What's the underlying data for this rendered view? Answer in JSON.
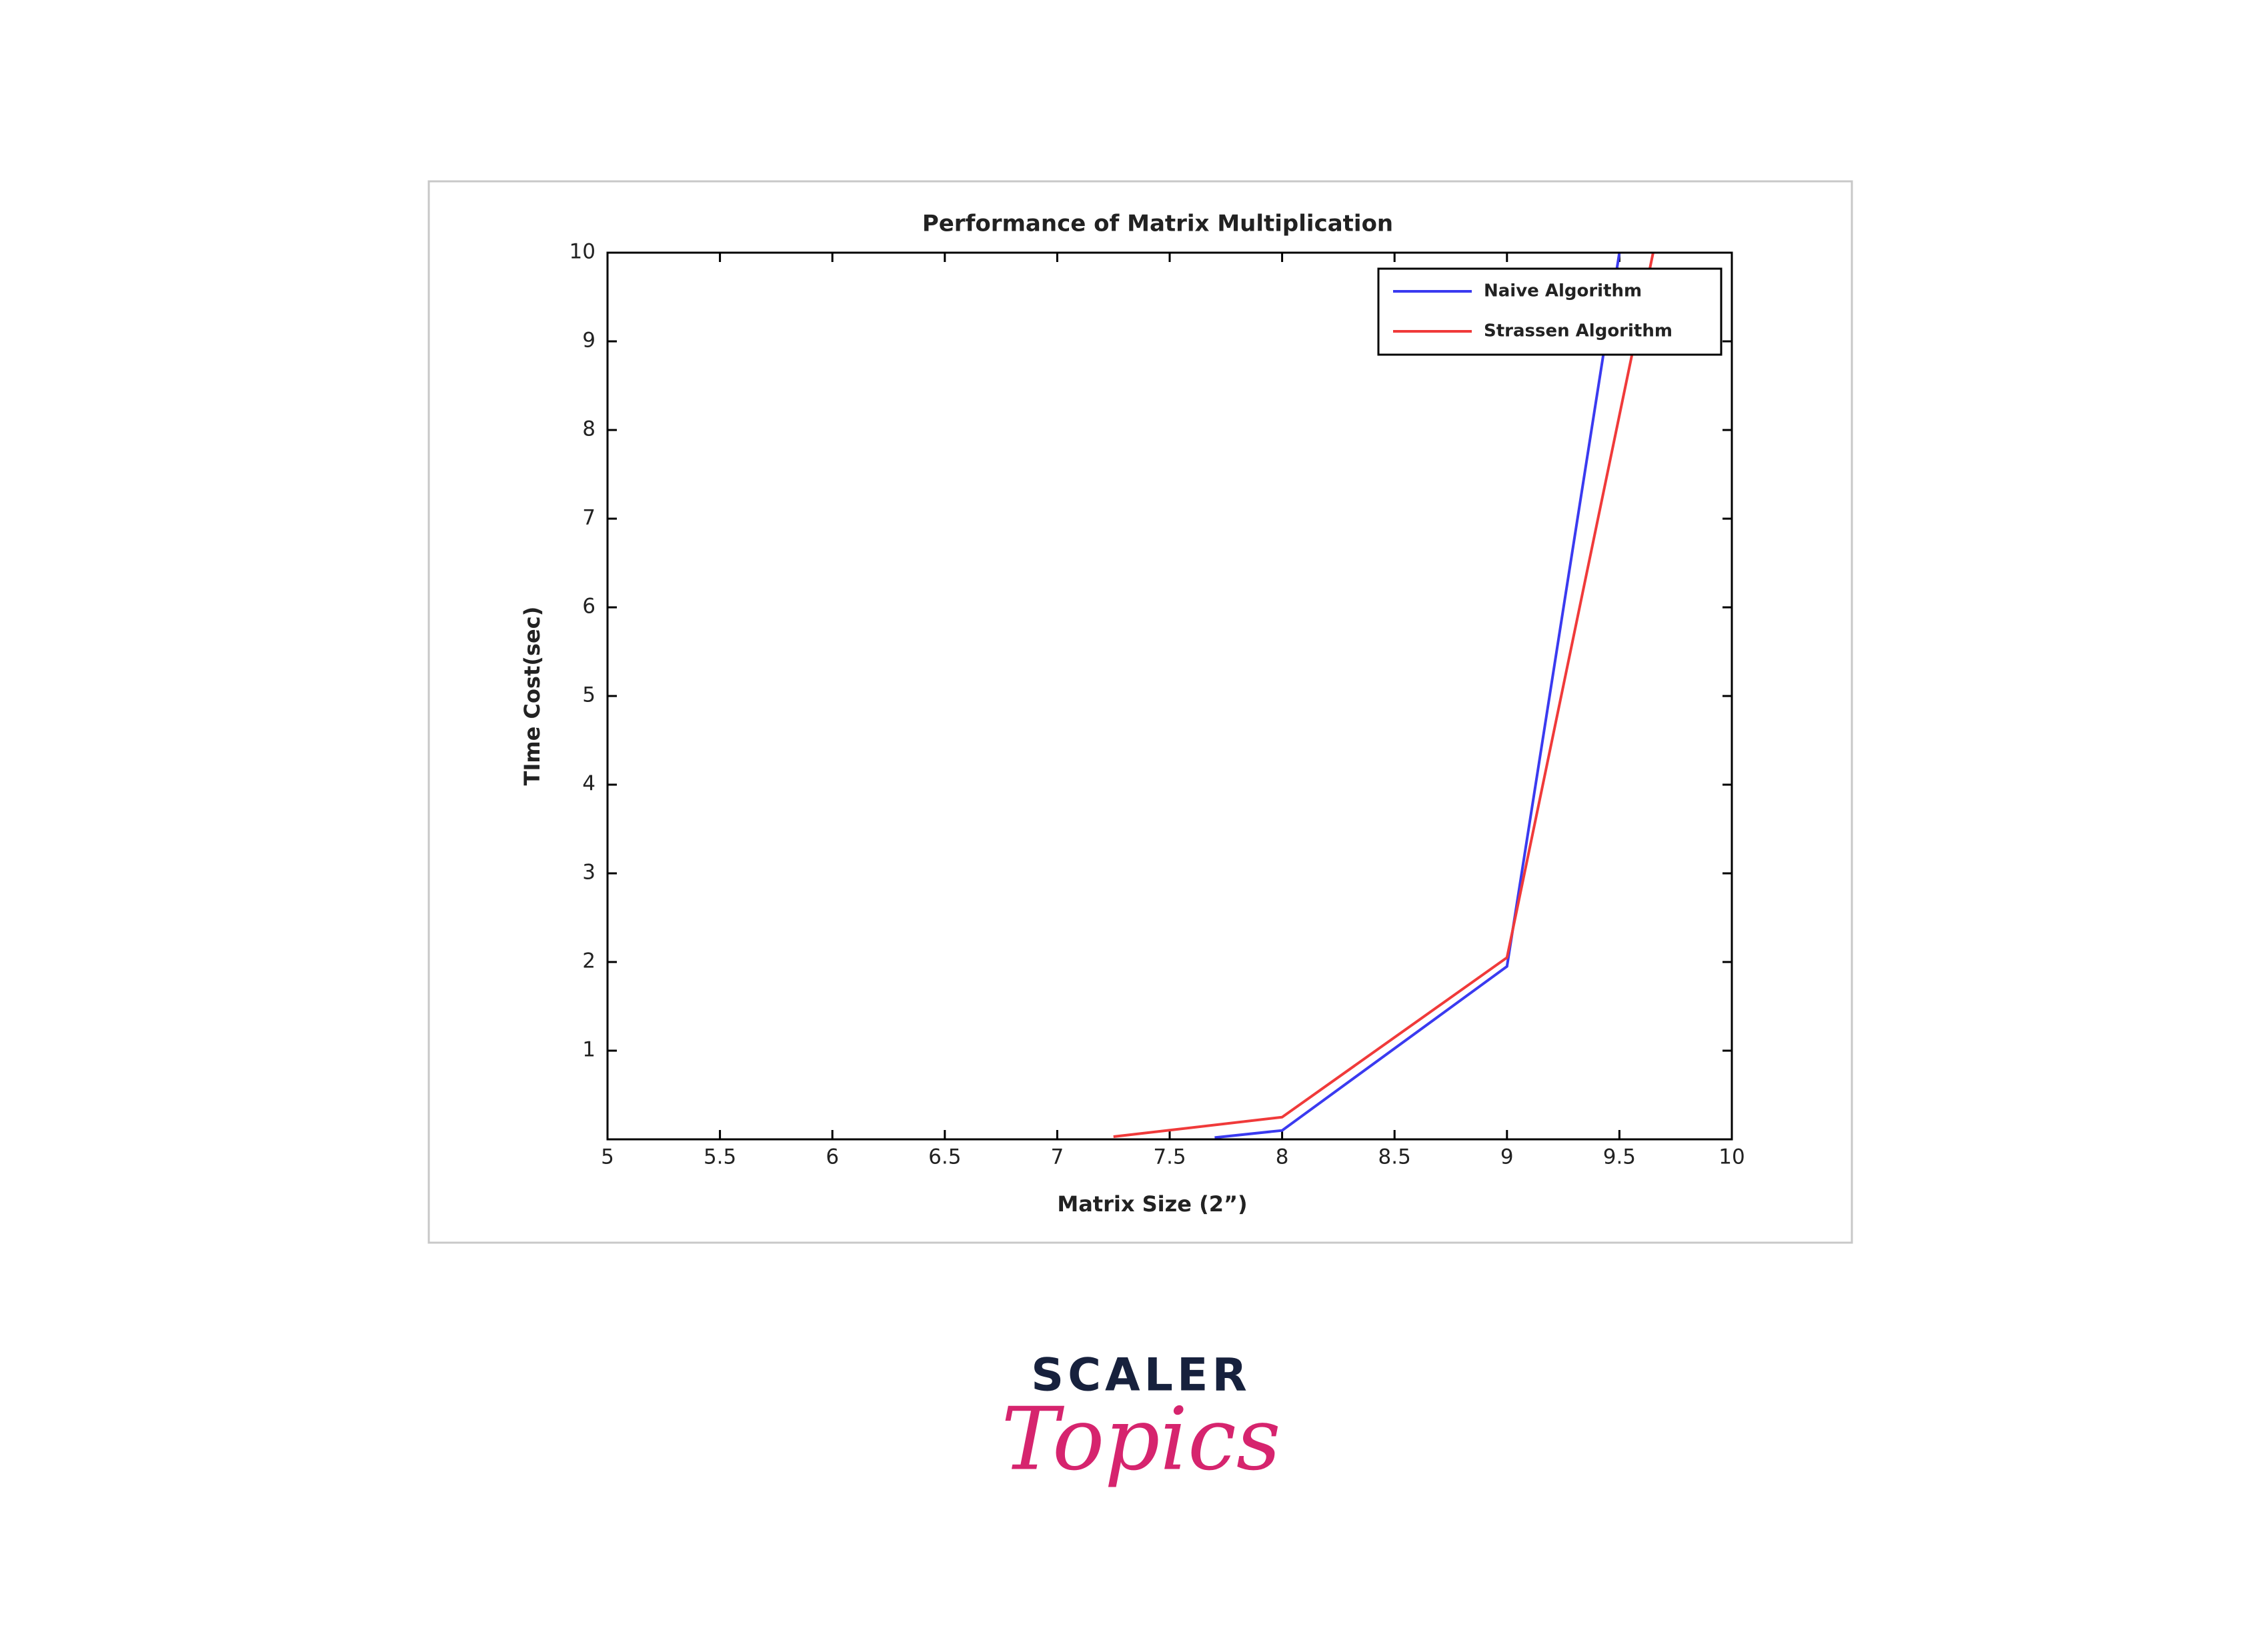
{
  "chart_data": {
    "type": "line",
    "title": "Performance of Matrix Multiplication",
    "x_label": "Matrix Size (2”)",
    "y_label": "TIme Cost(sec)",
    "series": [
      {
        "name": "Naive Algorithm",
        "color": "#3a3af0",
        "x": [
          7.7,
          8,
          9,
          9.5
        ],
        "values": [
          0.02,
          0.1,
          1.95,
          10
        ]
      },
      {
        "name": "Strassen Algorithm",
        "color": "#f03a3a",
        "x": [
          7.25,
          8,
          9,
          9.65
        ],
        "values": [
          0.03,
          0.25,
          2.05,
          10
        ]
      }
    ],
    "xlim": [
      5,
      10
    ],
    "xticks": [
      5,
      5.5,
      6,
      6.5,
      7,
      7.5,
      8,
      8.5,
      9,
      9.5,
      10
    ],
    "ylim": [
      0,
      10
    ],
    "yticks": [
      1,
      2,
      3,
      4,
      5,
      6,
      7,
      8,
      9,
      10
    ],
    "grid": false,
    "legend": "upper right"
  },
  "branding": {
    "name": "SCALER",
    "tagline": "Topics"
  }
}
